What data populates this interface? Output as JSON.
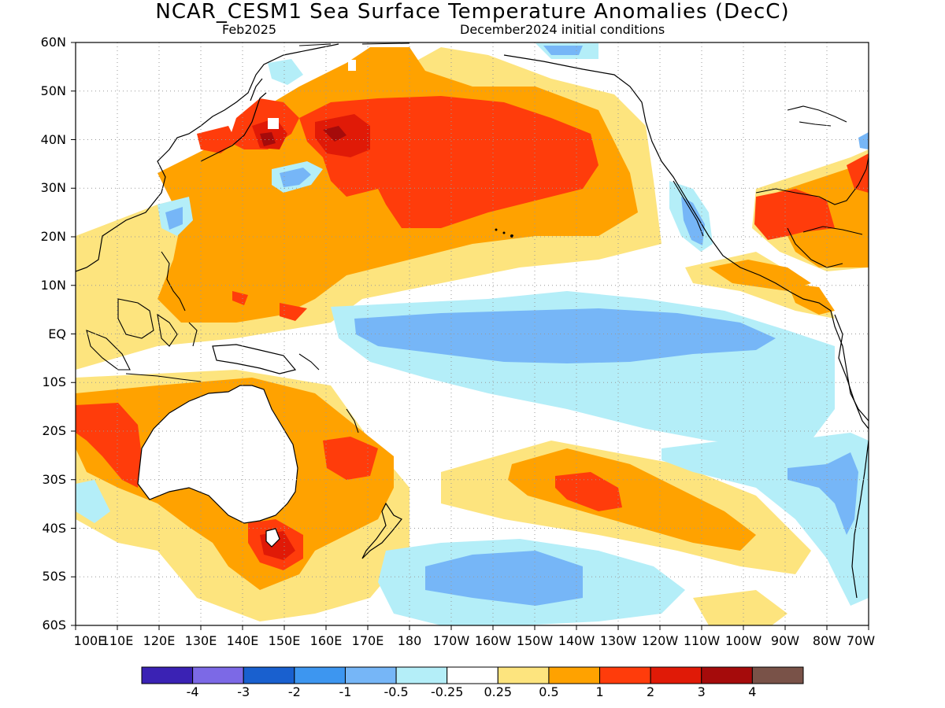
{
  "title": "NCAR_CESM1 Sea Surface Temperature Anomalies (DecC)",
  "subtitle_left": "Feb2025",
  "subtitle_right": "December2024 initial conditions",
  "lat_labels": [
    "60N",
    "50N",
    "40N",
    "30N",
    "20N",
    "10N",
    "EQ",
    "10S",
    "20S",
    "30S",
    "40S",
    "50S",
    "60S"
  ],
  "lon_labels": [
    "100E",
    "110E",
    "120E",
    "130E",
    "140E",
    "150E",
    "160E",
    "170E",
    "180",
    "170W",
    "160W",
    "150W",
    "140W",
    "130W",
    "120W",
    "110W",
    "100W",
    "90W",
    "80W",
    "70W"
  ],
  "colorbar": {
    "colors": [
      "#3a22b4",
      "#7c69e6",
      "#1960cf",
      "#3d96f0",
      "#76b6f7",
      "#b4eef8",
      "#ffffff",
      "#fde47e",
      "#ffa200",
      "#ff3c0b",
      "#e01a07",
      "#a50b0b",
      "#795248"
    ],
    "labels": [
      "-4",
      "-3",
      "-2",
      "-1",
      "-0.5",
      "-0.25",
      "0.25",
      "0.5",
      "1",
      "2",
      "3",
      "4"
    ]
  }
}
